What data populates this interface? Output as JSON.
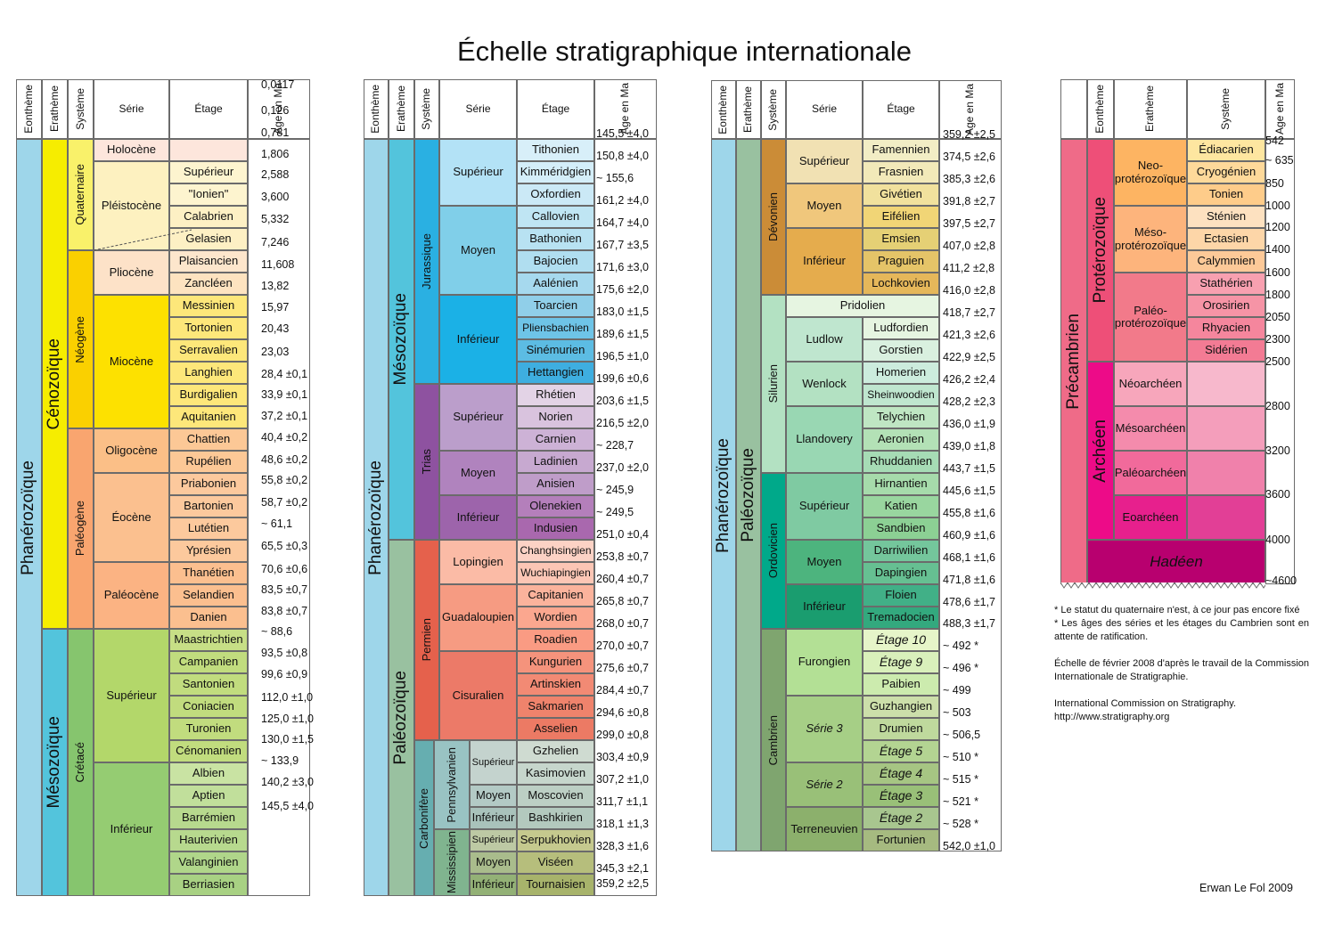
{
  "title": "Échelle stratigraphique internationale",
  "header": {
    "eontheme": "Eonthème",
    "eratheme": "Erathème",
    "systeme": "Système",
    "serie": "Série",
    "etage": "Étage",
    "age": "Age en Ma"
  },
  "panel1": {
    "eon": "Phanérozoïque",
    "eras": [
      "Cénozoïque",
      "Mésozoïque"
    ],
    "systems": [
      "Quaternaire",
      "Néogène",
      "Paléogène",
      "Crétacé"
    ],
    "series": [
      "Holocène",
      "Pléistocène",
      "Pliocène",
      "Miocène",
      "Oligocène",
      "Éocène",
      "Paléocène",
      "Supérieur",
      "Inférieur"
    ],
    "stages": [
      "Supérieur",
      "\"Ionien\"",
      "Calabrien",
      "Gelasien",
      "Plaisancien",
      "Zancléen",
      "Messinien",
      "Tortonien",
      "Serravalien",
      "Langhien",
      "Burdigalien",
      "Aquitanien",
      "Chattien",
      "Rupélien",
      "Priabonien",
      "Bartonien",
      "Lutétien",
      "Yprésien",
      "Thanétien",
      "Selandien",
      "Danien",
      "Maastrichtien",
      "Campanien",
      "Santonien",
      "Coniacien",
      "Turonien",
      "Cénomanien",
      "Albien",
      "Aptien",
      "Barrémien",
      "Hauterivien",
      "Valanginien",
      "Berriasien"
    ],
    "ages": [
      "0,0117",
      "0,126",
      "0,781",
      "1,806",
      "2,588",
      "3,600",
      "5,332",
      "7,246",
      "11,608",
      "13,82",
      "15,97",
      "20,43",
      "23,03",
      "28,4 ±0,1",
      "33,9 ±0,1",
      "37,2 ±0,1",
      "40,4 ±0,2",
      "48,6 ±0,2",
      "55,8 ±0,2",
      "58,7 ±0,2",
      "~ 61,1",
      "65,5 ±0,3",
      "70,6 ±0,6",
      "83,5 ±0,7",
      "83,8 ±0,7",
      "~ 88,6",
      "93,5 ±0,8",
      "99,6 ±0,9",
      "112,0 ±1,0",
      "125,0 ±1,0",
      "130,0 ±1,5",
      "~ 133,9",
      "140,2 ±3,0",
      "145,5 ±4,0"
    ]
  },
  "panel2": {
    "eon": "Phanérozoïque",
    "eras": [
      "Mésozoïque",
      "Paléozoïque"
    ],
    "systems": [
      "Jurassique",
      "Trias",
      "Permien",
      "Carbonifère"
    ],
    "subsystems": [
      "Pennsylvanien",
      "Mississipien"
    ],
    "series": [
      "Supérieur",
      "Moyen",
      "Inférieur",
      "Supérieur",
      "Moyen",
      "Inférieur",
      "Lopingien",
      "Guadaloupien",
      "Cisuralien",
      "Supérieur",
      "Moyen",
      "Inférieur",
      "Supérieur",
      "Moyen",
      "Inférieur"
    ],
    "stages": [
      "Tithonien",
      "Kimméridgien",
      "Oxfordien",
      "Callovien",
      "Bathonien",
      "Bajocien",
      "Aalénien",
      "Toarcien",
      "Pliensbachien",
      "Sinémurien",
      "Hettangien",
      "Rhétien",
      "Norien",
      "Carnien",
      "Ladinien",
      "Anisien",
      "Olenekien",
      "Indusien",
      "Changhsingien",
      "Wuchiapingien",
      "Capitanien",
      "Wordien",
      "Roadien",
      "Kungurien",
      "Artinskien",
      "Sakmarien",
      "Asselien",
      "Gzhelien",
      "Kasimovien",
      "Moscovien",
      "Bashkirien",
      "Serpukhovien",
      "Viséen",
      "Tournaisien"
    ],
    "ages": [
      "145,5 ±4,0",
      "150,8 ±4,0",
      "~ 155,6",
      "161,2 ±4,0",
      "164,7 ±4,0",
      "167,7 ±3,5",
      "171,6 ±3,0",
      "175,6 ±2,0",
      "183,0 ±1,5",
      "189,6 ±1,5",
      "196,5 ±1,0",
      "199,6 ±0,6",
      "203,6 ±1,5",
      "216,5 ±2,0",
      "~ 228,7",
      "237,0 ±2,0",
      "~ 245,9",
      "~ 249,5",
      "251,0 ±0,4",
      "253,8 ±0,7",
      "260,4 ±0,7",
      "265,8 ±0,7",
      "268,0 ±0,7",
      "270,0 ±0,7",
      "275,6 ±0,7",
      "284,4 ±0,7",
      "294,6 ±0,8",
      "299,0 ±0,8",
      "303,4 ±0,9",
      "307,2 ±1,0",
      "311,7 ±1,1",
      "318,1 ±1,3",
      "328,3 ±1,6",
      "345,3 ±2,1",
      "359,2 ±2,5"
    ]
  },
  "panel3": {
    "eon": "Phanérozoïque",
    "era": "Paléozoïque",
    "systems": [
      "Dévonien",
      "Silurien",
      "Ordovicien",
      "Cambrien"
    ],
    "series": [
      "Supérieur",
      "Moyen",
      "Inférieur",
      "Pridolien",
      "Ludlow",
      "Wenlock",
      "Llandovery",
      "Supérieur",
      "Moyen",
      "Inférieur",
      "Furongien",
      "Série 3",
      "Série 2",
      "Terreneuvien"
    ],
    "stages": [
      "Famennien",
      "Frasnien",
      "Givétien",
      "Eifélien",
      "Emsien",
      "Praguien",
      "Lochkovien",
      "Ludfordien",
      "Gorstien",
      "Homerien",
      "Sheinwoodien",
      "Telychien",
      "Aeronien",
      "Rhuddanien",
      "Hirnantien",
      "Katien",
      "Sandbien",
      "Darriwilien",
      "Dapingien",
      "Floien",
      "Tremadocien",
      "Étage 10",
      "Étage 9",
      "Paibien",
      "Guzhangien",
      "Drumien",
      "Étage 5",
      "Étage 4",
      "Étage 3",
      "Étage 2",
      "Fortunien"
    ],
    "ages": [
      "359,2 ±2,5",
      "374,5 ±2,6",
      "385,3 ±2,6",
      "391,8 ±2,7",
      "397,5 ±2,7",
      "407,0 ±2,8",
      "411,2 ±2,8",
      "416,0 ±2,8",
      "418,7 ±2,7",
      "421,3 ±2,6",
      "422,9 ±2,5",
      "426,2 ±2,4",
      "428,2 ±2,3",
      "436,0 ±1,9",
      "439,0 ±1,8",
      "443,7 ±1,5",
      "445,6 ±1,5",
      "455,8 ±1,6",
      "460,9 ±1,6",
      "468,1 ±1,6",
      "471,8 ±1,6",
      "478,6 ±1,7",
      "488,3 ±1,7",
      "~ 492 *",
      "~ 496 *",
      "~ 499",
      "~ 503",
      "~ 506,5",
      "~ 510 *",
      "~ 515 *",
      "~ 521 *",
      "~ 528 *",
      "542,0 ±1,0"
    ]
  },
  "panel4": {
    "eon": "Précambrien",
    "eras": [
      "Protérozoïque",
      "Archéen"
    ],
    "erathems": [
      "Neo-\nprotérozoïque",
      "Méso-\nprotérozoïque",
      "Paléo-\nprotérozoïque",
      "Néoarchéen",
      "Mésoarchéen",
      "Paléoarchéen",
      "Eoarchéen"
    ],
    "systems": [
      "Édiacarien",
      "Cryogénien",
      "Tonien",
      "Sténien",
      "Ectasien",
      "Calymmien",
      "Stathérien",
      "Orosirien",
      "Rhyacien",
      "Sidérien"
    ],
    "hadeen": "Hadéen",
    "ages": [
      "542",
      "~ 635",
      "850",
      "1000",
      "1200",
      "1400",
      "1600",
      "1800",
      "2050",
      "2300",
      "2500",
      "2800",
      "3200",
      "3600",
      "4000",
      "~4600"
    ]
  },
  "notes": [
    "* Le statut du quaternaire n'est, à ce jour pas encore fixé\n* Les âges des séries et les étages du Cambrien sont en attente de ratification.",
    "Échelle de février 2008 d'après le travail de la Commission Internationale de Stratigraphie.",
    "International Commission on Stratigraphy.\nhttp://www.stratigraphy.org"
  ],
  "author": "Erwan Le Fol 2009"
}
